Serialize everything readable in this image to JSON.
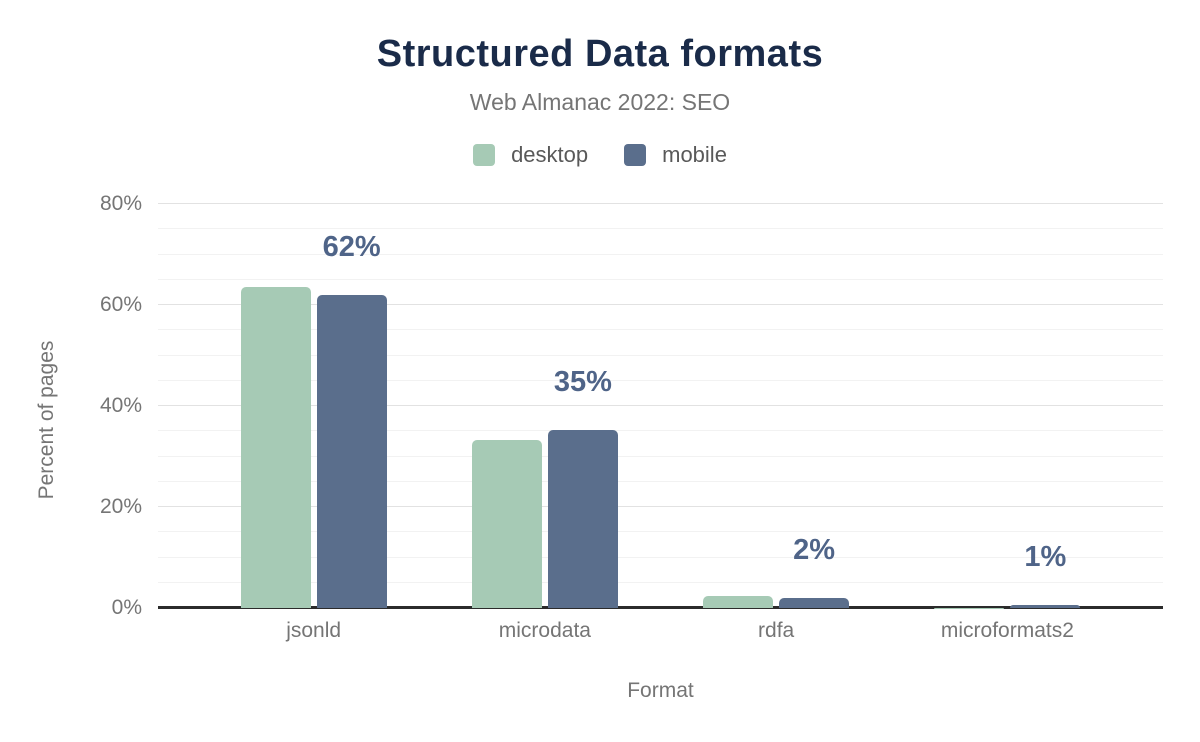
{
  "chart": {
    "title": "Structured Data formats",
    "subtitle": "Web Almanac 2022: SEO",
    "y_axis_title": "Percent of pages",
    "x_axis_title": "Format"
  },
  "chart_data": {
    "type": "bar",
    "title": "Structured Data formats",
    "subtitle": "Web Almanac 2022: SEO",
    "xlabel": "Format",
    "ylabel": "Percent of pages",
    "categories": [
      "jsonld",
      "microdata",
      "rdfa",
      "microformats2"
    ],
    "series": [
      {
        "name": "desktop",
        "color": "#a6cab5",
        "values": [
          63.5,
          33.3,
          2.4,
          0.1
        ]
      },
      {
        "name": "mobile",
        "color": "#5a6e8c",
        "values": [
          62.0,
          35.2,
          2.0,
          0.5
        ]
      }
    ],
    "bar_labels": [
      "62%",
      "35%",
      "2%",
      "1%"
    ],
    "bar_label_series": "mobile",
    "ylim": [
      0,
      80
    ],
    "yticks": [
      0,
      20,
      40,
      60,
      80
    ],
    "ytick_labels": [
      "0%",
      "20%",
      "40%",
      "60%",
      "80%"
    ],
    "grid": {
      "on": true,
      "minor_step": 5,
      "major_step": 20
    },
    "legend_position": "top",
    "colors": {
      "title": "#1a2b49",
      "axis_text": "#757575",
      "legend_text": "#595959",
      "bar_label": "#4f6488",
      "axis_line": "#2b2b2b"
    }
  }
}
